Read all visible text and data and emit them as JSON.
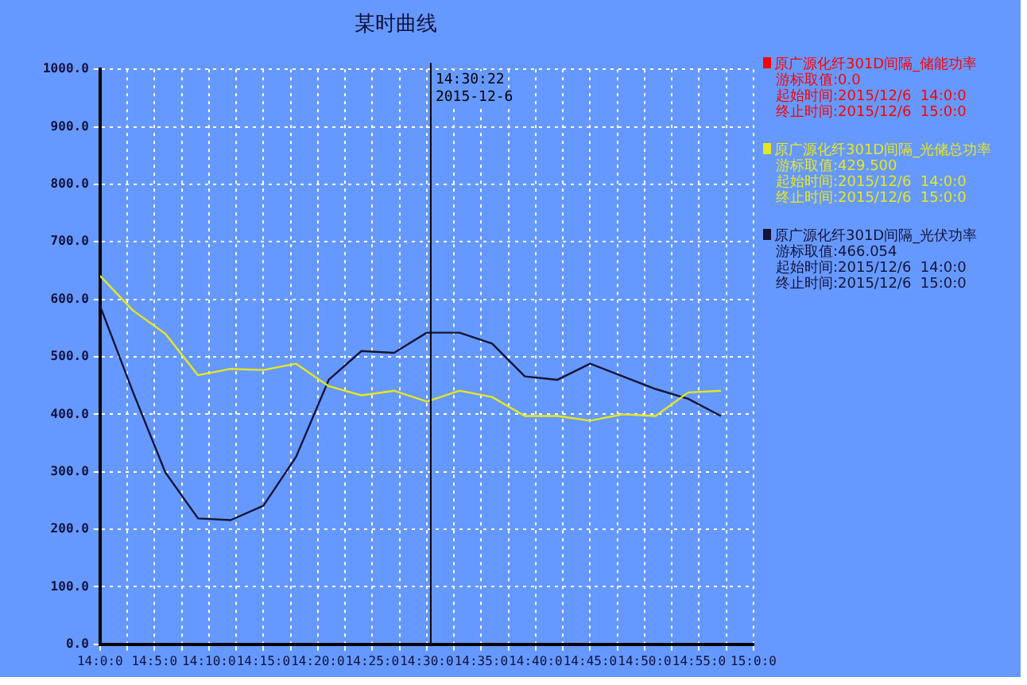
{
  "chart_data": {
    "type": "line",
    "title": "某时曲线",
    "x": [
      "2015-12-06T14:00",
      "2015-12-06T14:03",
      "2015-12-06T14:06",
      "2015-12-06T14:09",
      "2015-12-06T14:12",
      "2015-12-06T14:15",
      "2015-12-06T14:18",
      "2015-12-06T14:21",
      "2015-12-06T14:24",
      "2015-12-06T14:27",
      "2015-12-06T14:30",
      "2015-12-06T14:33",
      "2015-12-06T14:36",
      "2015-12-06T14:39",
      "2015-12-06T14:42",
      "2015-12-06T14:45",
      "2015-12-06T14:48",
      "2015-12-06T14:51",
      "2015-12-06T14:54",
      "2015-12-06T14:57"
    ],
    "series": [
      {
        "name": "原广源化纤301D间隔_储能功率",
        "color": "#ff0000",
        "values": [
          null,
          null,
          null,
          null,
          null,
          null,
          null,
          null,
          null,
          null,
          null,
          null,
          null,
          null,
          null,
          null,
          null,
          null,
          null,
          null
        ]
      },
      {
        "name": "原广源化纤301D间隔_光储总功率",
        "color": "#e6e620",
        "values": [
          641,
          581,
          540,
          468,
          479,
          477,
          488,
          449,
          433,
          441,
          422,
          441,
          430,
          397,
          397,
          389,
          400,
          397,
          438,
          441
        ]
      },
      {
        "name": "原广源化纤301D间隔_光伏功率",
        "color": "#141438",
        "values": [
          589,
          440,
          299,
          219,
          216,
          241,
          326,
          460,
          510,
          507,
          542,
          542,
          523,
          466,
          460,
          488,
          466,
          444,
          427,
          397
        ]
      }
    ],
    "xlim": [
      "2015-12-06T14:00",
      "2015-12-06T15:00"
    ],
    "xticks": [
      {
        "value": "2015-12-06T14:00",
        "label": "14:0:0"
      },
      {
        "value": "2015-12-06T14:02:30",
        "label": null
      },
      {
        "value": "2015-12-06T14:05",
        "label": "14:5:0"
      },
      {
        "value": "2015-12-06T14:07:30",
        "label": null
      },
      {
        "value": "2015-12-06T14:10",
        "label": "14:10:0"
      },
      {
        "value": "2015-12-06T14:12:30",
        "label": null
      },
      {
        "value": "2015-12-06T14:15",
        "label": "14:15:0"
      },
      {
        "value": "2015-12-06T14:17:30",
        "label": null
      },
      {
        "value": "2015-12-06T14:20",
        "label": "14:20:0"
      },
      {
        "value": "2015-12-06T14:22:30",
        "label": null
      },
      {
        "value": "2015-12-06T14:25",
        "label": "14:25:0"
      },
      {
        "value": "2015-12-06T14:27:30",
        "label": null
      },
      {
        "value": "2015-12-06T14:30",
        "label": "14:30:0"
      },
      {
        "value": "2015-12-06T14:32:30",
        "label": null
      },
      {
        "value": "2015-12-06T14:35",
        "label": "14:35:0"
      },
      {
        "value": "2015-12-06T14:37:30",
        "label": null
      },
      {
        "value": "2015-12-06T14:40",
        "label": "14:40:0"
      },
      {
        "value": "2015-12-06T14:42:30",
        "label": null
      },
      {
        "value": "2015-12-06T14:45",
        "label": "14:45:0"
      },
      {
        "value": "2015-12-06T14:47:30",
        "label": null
      },
      {
        "value": "2015-12-06T14:50",
        "label": "14:50:0"
      },
      {
        "value": "2015-12-06T14:52:30",
        "label": null
      },
      {
        "value": "2015-12-06T14:55",
        "label": "14:55:0"
      },
      {
        "value": "2015-12-06T14:57:30",
        "label": null
      },
      {
        "value": "2015-12-06T15:00",
        "label": "15:0:0"
      }
    ],
    "ylim": [
      0,
      1000
    ],
    "yticks": [
      {
        "value": 0,
        "label": "0.0"
      },
      {
        "value": 100,
        "label": "100.0"
      },
      {
        "value": 200,
        "label": "200.0"
      },
      {
        "value": 300,
        "label": "300.0"
      },
      {
        "value": 400,
        "label": "400.0"
      },
      {
        "value": 500,
        "label": "500.0"
      },
      {
        "value": 600,
        "label": "600.0"
      },
      {
        "value": 700,
        "label": "700.0"
      },
      {
        "value": 800,
        "label": "800.0"
      },
      {
        "value": 900,
        "label": "900.0"
      },
      {
        "value": 1000,
        "label": "1000.0"
      }
    ],
    "ref_lines": [
      {
        "axis": "x",
        "value": "2015-12-06T14:30:22",
        "label": "14:30:22\n2015-12-6",
        "color": "#000000"
      }
    ],
    "annotations": [
      "游标取值:0.0",
      "起始时间:2015/12/6  14:0:0",
      "终止时间:2015/12/6  15:0:0",
      "游标取值:429.500",
      "起始时间:2015/12/6  14:0:0",
      "终止时间:2015/12/6  15:0:0",
      "游标取值:466.054",
      "起始时间:2015/12/6  14:0:0",
      "终止时间:2015/12/6  15:0:0"
    ],
    "grid": true,
    "legend": "right",
    "marker": "none",
    "line_style": "solid"
  }
}
